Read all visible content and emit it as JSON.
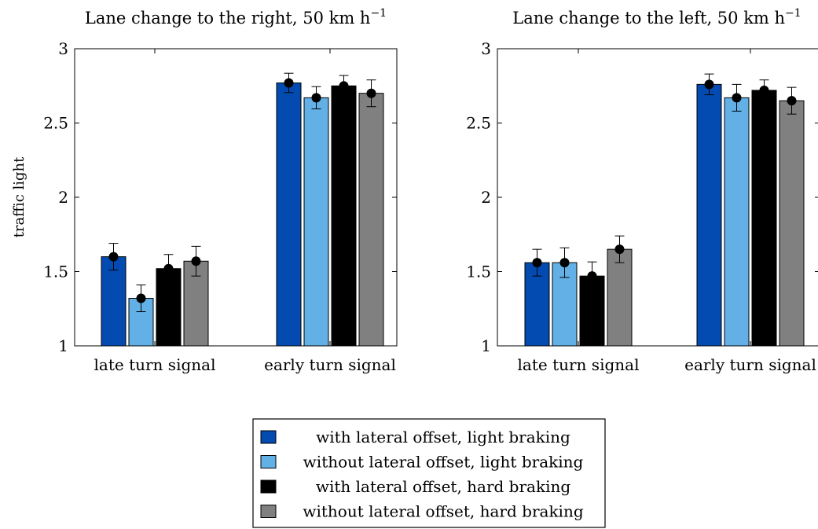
{
  "chart_data": [
    {
      "type": "bar",
      "title": "Lane change to the right, 50 km h",
      "title_superscript": "−1",
      "ylabel": "traffic light",
      "xlabel": "",
      "ylim": [
        1,
        3
      ],
      "yticks": [
        "1",
        "1.5",
        "2",
        "2.5",
        "3"
      ],
      "categories": [
        "late turn signal",
        "early turn signal"
      ],
      "series": [
        {
          "values": [
            1.6,
            2.77
          ],
          "errors": [
            0.09,
            0.065
          ]
        },
        {
          "values": [
            1.32,
            2.67
          ],
          "errors": [
            0.09,
            0.075
          ]
        },
        {
          "values": [
            1.52,
            2.75
          ],
          "errors": [
            0.095,
            0.07
          ]
        },
        {
          "values": [
            1.57,
            2.7
          ],
          "errors": [
            0.1,
            0.09
          ]
        }
      ]
    },
    {
      "type": "bar",
      "title": "Lane change to the left, 50 km h",
      "title_superscript": "−1",
      "ylabel": "",
      "xlabel": "",
      "ylim": [
        1,
        3
      ],
      "yticks": [
        "1",
        "1.5",
        "2",
        "2.5",
        "3"
      ],
      "categories": [
        "late turn signal",
        "early turn signal"
      ],
      "series": [
        {
          "values": [
            1.56,
            2.76
          ],
          "errors": [
            0.09,
            0.07
          ]
        },
        {
          "values": [
            1.56,
            2.67
          ],
          "errors": [
            0.1,
            0.09
          ]
        },
        {
          "values": [
            1.47,
            2.72
          ],
          "errors": [
            0.095,
            0.07
          ]
        },
        {
          "values": [
            1.65,
            2.65
          ],
          "errors": [
            0.09,
            0.09
          ]
        }
      ]
    }
  ],
  "legend": {
    "placement": "bottom-center",
    "entries": [
      {
        "label": "with lateral offset, light braking",
        "color": "#034bb0"
      },
      {
        "label": "without lateral offset, light braking",
        "color": "#62b0e6"
      },
      {
        "label": "with lateral offset, hard braking",
        "color": "#000000"
      },
      {
        "label": "without lateral offset, hard braking",
        "color": "#808080"
      }
    ]
  }
}
